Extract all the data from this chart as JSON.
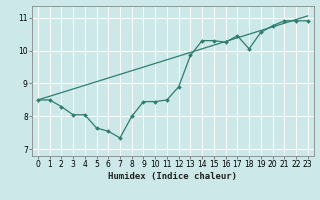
{
  "title": "",
  "xlabel": "Humidex (Indice chaleur)",
  "xlim": [
    -0.5,
    23.5
  ],
  "ylim": [
    6.8,
    11.35
  ],
  "xticks": [
    0,
    1,
    2,
    3,
    4,
    5,
    6,
    7,
    8,
    9,
    10,
    11,
    12,
    13,
    14,
    15,
    16,
    17,
    18,
    19,
    20,
    21,
    22,
    23
  ],
  "yticks": [
    7,
    8,
    9,
    10,
    11
  ],
  "bg_color": "#cce8e8",
  "line_color": "#2e7d6e",
  "grid_color": "#ffffff",
  "zigzag_x": [
    0,
    1,
    2,
    3,
    4,
    5,
    6,
    7,
    8,
    9,
    10,
    11,
    12,
    13,
    14,
    15,
    16,
    17,
    18,
    19,
    20,
    21,
    22,
    23
  ],
  "zigzag_y": [
    8.5,
    8.5,
    8.3,
    8.05,
    8.05,
    7.65,
    7.55,
    7.35,
    8.0,
    8.45,
    8.45,
    8.5,
    8.9,
    9.85,
    10.3,
    10.3,
    10.25,
    10.45,
    10.05,
    10.55,
    10.75,
    10.9,
    10.9,
    10.9
  ],
  "trend_x": [
    0,
    23
  ],
  "trend_y": [
    8.5,
    11.05
  ]
}
